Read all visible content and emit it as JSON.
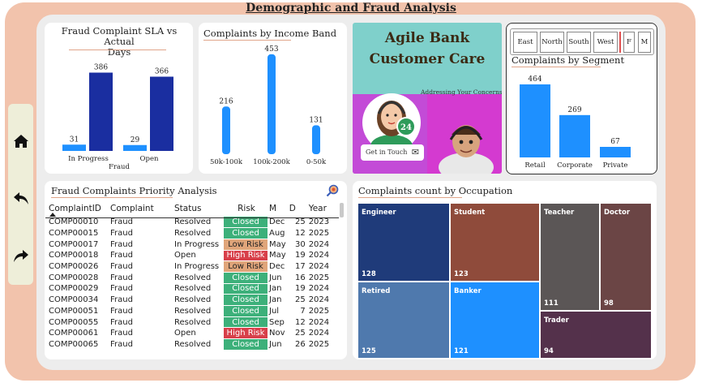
{
  "page": {
    "title": "Demographic and Fraud Analysis"
  },
  "nav": {
    "items": [
      "home-icon",
      "back-arrow-icon",
      "forward-arrow-icon"
    ]
  },
  "sla_chart": {
    "title_line1": "Fraud Complaint SLA vs Actual",
    "title_line2": "Days",
    "categories": [
      "In Progress",
      "Open"
    ],
    "xlabel": "Fraud",
    "series": [
      {
        "values": [
          31,
          29
        ],
        "color": "#1e90ff"
      },
      {
        "values": [
          386,
          366
        ],
        "color": "#1a2ea0"
      }
    ]
  },
  "income_chart": {
    "title": "Complaints by Income Band",
    "categories": [
      "50k-100k",
      "100k-200k",
      "0-50k"
    ],
    "values": [
      216,
      453,
      131
    ],
    "color": "#1e90ff"
  },
  "promo": {
    "line1": "Agile Bank",
    "line2": "Customer Care",
    "sub": "Addressing Your Concerns",
    "badge": "24",
    "button": "Get in Touch"
  },
  "segment": {
    "slicers": [
      "East",
      "North",
      "South",
      "West",
      "F",
      "M"
    ],
    "title": "Complaints by Segment",
    "categories": [
      "Retail",
      "Corporate",
      "Private"
    ],
    "values": [
      464,
      269,
      67
    ],
    "color": "#1e90ff"
  },
  "priority": {
    "title": "Fraud Complaints Priority Analysis",
    "columns": [
      "ComplaintID",
      "Complaint",
      "Status",
      "Risk",
      "M",
      "D",
      "Year"
    ],
    "rows": [
      [
        "COMP00010",
        "Fraud",
        "Resolved",
        "Closed",
        "Dec",
        "25",
        "2023"
      ],
      [
        "COMP00015",
        "Fraud",
        "Resolved",
        "Closed",
        "Aug",
        "12",
        "2025"
      ],
      [
        "COMP00017",
        "Fraud",
        "In Progress",
        "Low Risk",
        "May",
        "30",
        "2024"
      ],
      [
        "COMP00018",
        "Fraud",
        "Open",
        "High Risk",
        "May",
        "19",
        "2024"
      ],
      [
        "COMP00026",
        "Fraud",
        "In Progress",
        "Low Risk",
        "Dec",
        "17",
        "2024"
      ],
      [
        "COMP00028",
        "Fraud",
        "Resolved",
        "Closed",
        "Jun",
        "16",
        "2025"
      ],
      [
        "COMP00029",
        "Fraud",
        "Resolved",
        "Closed",
        "Jan",
        "19",
        "2024"
      ],
      [
        "COMP00034",
        "Fraud",
        "Resolved",
        "Closed",
        "Jan",
        "25",
        "2024"
      ],
      [
        "COMP00051",
        "Fraud",
        "Resolved",
        "Closed",
        "Jul",
        "7",
        "2025"
      ],
      [
        "COMP00055",
        "Fraud",
        "Resolved",
        "Closed",
        "Sep",
        "12",
        "2024"
      ],
      [
        "COMP00061",
        "Fraud",
        "Open",
        "High Risk",
        "Nov",
        "25",
        "2024"
      ],
      [
        "COMP00065",
        "Fraud",
        "Resolved",
        "Closed",
        "Jun",
        "26",
        "2025"
      ]
    ]
  },
  "occupation": {
    "title": "Complaints count by Occupation",
    "tiles": [
      {
        "name": "Engineer",
        "value": "128",
        "color": "#1f3b7a"
      },
      {
        "name": "Student",
        "value": "123",
        "color": "#8f4b3b"
      },
      {
        "name": "Teacher",
        "value": "111",
        "color": "#5b5656"
      },
      {
        "name": "Doctor",
        "value": "98",
        "color": "#6b4545"
      },
      {
        "name": "Retired",
        "value": "125",
        "color": "#4f79ad"
      },
      {
        "name": "Banker",
        "value": "121",
        "color": "#1e90ff"
      },
      {
        "name": "Trader",
        "value": "94",
        "color": "#54314b"
      }
    ]
  }
}
